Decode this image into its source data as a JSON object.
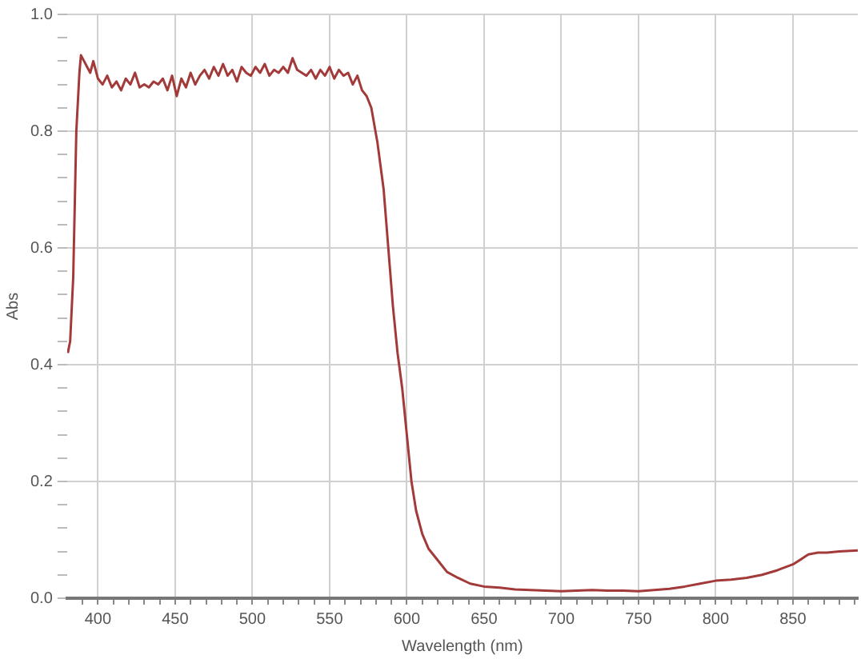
{
  "chart_data": {
    "type": "line",
    "xlabel": "Wavelength (nm)",
    "ylabel": "Abs",
    "x": [
      380.5,
      382,
      384,
      386,
      388,
      389,
      391,
      393,
      395,
      397,
      400,
      403,
      406,
      409,
      412,
      415,
      418,
      421,
      424,
      427,
      430,
      433,
      436,
      439,
      442,
      445,
      448,
      451,
      454,
      457,
      460,
      463,
      466,
      469,
      472,
      475,
      478,
      481,
      484,
      487,
      490,
      493,
      496,
      499,
      502,
      505,
      508,
      511,
      514,
      517,
      520,
      523,
      526,
      529,
      532,
      535,
      538,
      541,
      544,
      547,
      550,
      553,
      556,
      559,
      562,
      565,
      568,
      571,
      574,
      577,
      581,
      585,
      588,
      591,
      594,
      597,
      600,
      603,
      606,
      610,
      614,
      620,
      626,
      633,
      641,
      650,
      660,
      670,
      680,
      690,
      700,
      710,
      720,
      730,
      740,
      750,
      760,
      770,
      780,
      790,
      800,
      810,
      820,
      830,
      840,
      850,
      856,
      860,
      866,
      872,
      880,
      892
    ],
    "series": [
      {
        "color": "#a33a3a",
        "values": [
          0.42,
          0.44,
          0.55,
          0.8,
          0.9,
          0.93,
          0.92,
          0.91,
          0.9,
          0.92,
          0.89,
          0.88,
          0.895,
          0.875,
          0.885,
          0.87,
          0.89,
          0.88,
          0.9,
          0.875,
          0.88,
          0.875,
          0.885,
          0.88,
          0.89,
          0.87,
          0.895,
          0.86,
          0.89,
          0.875,
          0.9,
          0.88,
          0.895,
          0.905,
          0.89,
          0.91,
          0.895,
          0.915,
          0.895,
          0.905,
          0.885,
          0.91,
          0.9,
          0.895,
          0.91,
          0.9,
          0.915,
          0.895,
          0.905,
          0.9,
          0.91,
          0.9,
          0.925,
          0.905,
          0.9,
          0.895,
          0.905,
          0.89,
          0.905,
          0.895,
          0.91,
          0.89,
          0.905,
          0.895,
          0.9,
          0.88,
          0.895,
          0.87,
          0.86,
          0.84,
          0.78,
          0.7,
          0.6,
          0.5,
          0.42,
          0.36,
          0.28,
          0.2,
          0.15,
          0.11,
          0.085,
          0.065,
          0.045,
          0.035,
          0.025,
          0.02,
          0.018,
          0.015,
          0.014,
          0.013,
          0.012,
          0.013,
          0.014,
          0.013,
          0.013,
          0.012,
          0.014,
          0.016,
          0.02,
          0.025,
          0.03,
          0.032,
          0.035,
          0.04,
          0.048,
          0.058,
          0.068,
          0.075,
          0.078,
          0.078,
          0.08,
          0.082
        ]
      }
    ],
    "xlim": [
      380,
      892
    ],
    "xticks": [
      {
        "value": 390,
        "label": null
      },
      400,
      {
        "value": 410,
        "label": null
      },
      {
        "value": 420,
        "label": null
      },
      {
        "value": 430,
        "label": null
      },
      {
        "value": 440,
        "label": null
      },
      450,
      {
        "value": 460,
        "label": null
      },
      {
        "value": 470,
        "label": null
      },
      {
        "value": 480,
        "label": null
      },
      {
        "value": 490,
        "label": null
      },
      500,
      {
        "value": 510,
        "label": null
      },
      {
        "value": 520,
        "label": null
      },
      {
        "value": 530,
        "label": null
      },
      {
        "value": 540,
        "label": null
      },
      550,
      {
        "value": 560,
        "label": null
      },
      {
        "value": 570,
        "label": null
      },
      {
        "value": 580,
        "label": null
      },
      {
        "value": 590,
        "label": null
      },
      600,
      {
        "value": 610,
        "label": null
      },
      {
        "value": 620,
        "label": null
      },
      {
        "value": 630,
        "label": null
      },
      {
        "value": 640,
        "label": null
      },
      650,
      {
        "value": 660,
        "label": null
      },
      {
        "value": 670,
        "label": null
      },
      {
        "value": 680,
        "label": null
      },
      {
        "value": 690,
        "label": null
      },
      700,
      {
        "value": 710,
        "label": null
      },
      {
        "value": 720,
        "label": null
      },
      {
        "value": 730,
        "label": null
      },
      {
        "value": 740,
        "label": null
      },
      750,
      {
        "value": 760,
        "label": null
      },
      {
        "value": 770,
        "label": null
      },
      {
        "value": 780,
        "label": null
      },
      {
        "value": 790,
        "label": null
      },
      800,
      {
        "value": 810,
        "label": null
      },
      {
        "value": 820,
        "label": null
      },
      {
        "value": 830,
        "label": null
      },
      {
        "value": 840,
        "label": null
      },
      850,
      {
        "value": 860,
        "label": null
      },
      {
        "value": 870,
        "label": null
      },
      {
        "value": 880,
        "label": null
      },
      {
        "value": 890,
        "label": null
      }
    ],
    "ylim": [
      0,
      1
    ],
    "yticks": [
      {
        "value": 0,
        "label": "0.0"
      },
      {
        "value": 0.04,
        "label": null
      },
      {
        "value": 0.08,
        "label": null
      },
      {
        "value": 0.12,
        "label": null
      },
      {
        "value": 0.16,
        "label": null
      },
      0.2,
      {
        "value": 0.24,
        "label": null
      },
      {
        "value": 0.28,
        "label": null
      },
      {
        "value": 0.32,
        "label": null
      },
      {
        "value": 0.36,
        "label": null
      },
      0.4,
      {
        "value": 0.44,
        "label": null
      },
      {
        "value": 0.48,
        "label": null
      },
      {
        "value": 0.52,
        "label": null
      },
      {
        "value": 0.56,
        "label": null
      },
      0.6,
      {
        "value": 0.64,
        "label": null
      },
      {
        "value": 0.68,
        "label": null
      },
      {
        "value": 0.72,
        "label": null
      },
      {
        "value": 0.76,
        "label": null
      },
      0.8,
      {
        "value": 0.84,
        "label": null
      },
      {
        "value": 0.88,
        "label": null
      },
      {
        "value": 0.92,
        "label": null
      },
      {
        "value": 0.96,
        "label": null
      },
      {
        "value": 1,
        "label": "1.0"
      }
    ],
    "grid": true,
    "legend": false,
    "marker": "none",
    "line_style": "solid"
  }
}
